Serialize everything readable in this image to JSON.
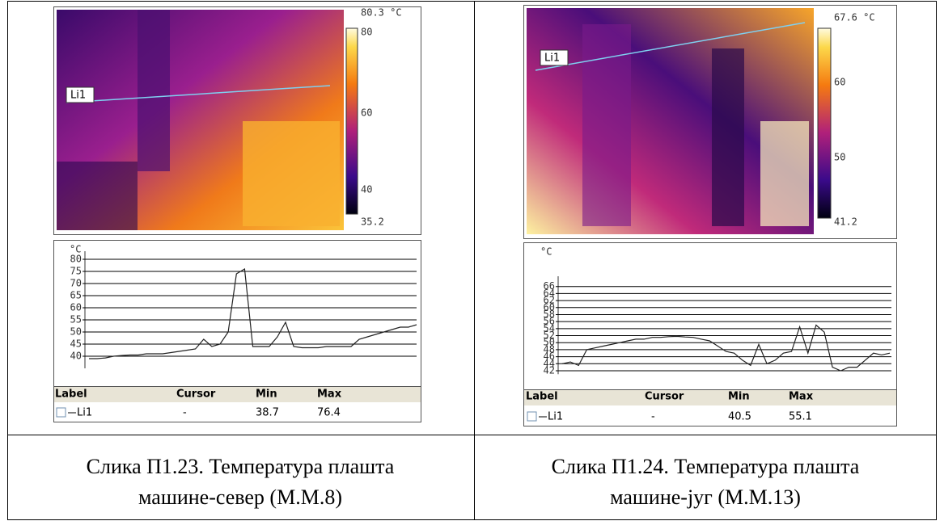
{
  "panels": [
    {
      "colorbar_labels": [
        "80.3 °C",
        "80",
        "60",
        "40",
        "35.2"
      ],
      "line_label": "Li1",
      "chart": {
        "type": "line",
        "unit": "°C",
        "ylim": [
          35,
          82
        ],
        "yticks": [
          40,
          45,
          50,
          55,
          60,
          65,
          70,
          75,
          80
        ],
        "values": [
          39,
          39,
          39.3,
          40,
          40.3,
          40.5,
          40.5,
          41,
          41,
          41,
          41.5,
          42,
          42.5,
          43,
          47,
          44,
          45,
          50,
          74,
          76,
          44,
          44,
          44,
          48,
          54,
          44,
          43.5,
          43.5,
          43.5,
          44,
          44,
          44,
          44,
          47,
          48,
          49,
          50,
          51,
          52,
          52,
          53
        ]
      },
      "table": {
        "columns": [
          "Label",
          "Cursor",
          "Min",
          "Max"
        ],
        "rows": [
          [
            "Li1",
            "-",
            "38.7",
            "76.4"
          ]
        ]
      },
      "caption": [
        "Слика П1.23. Температура плашта",
        "машине-север (М.М.8)"
      ]
    },
    {
      "colorbar_labels": [
        "67.6 °C",
        "60",
        "50",
        "41.2"
      ],
      "line_label": "Li1",
      "chart": {
        "type": "line",
        "unit": "°C",
        "ylim": [
          41,
          68
        ],
        "yticks": [
          42,
          44,
          46,
          48,
          50,
          52,
          54,
          56,
          58,
          60,
          62,
          64,
          66
        ],
        "values": [
          44,
          44.5,
          43.5,
          48,
          48.5,
          49,
          49.5,
          50,
          50.5,
          51,
          51,
          51.5,
          51.5,
          51.7,
          51.8,
          51.6,
          51.5,
          51,
          50.5,
          49,
          47.5,
          47,
          45,
          43.5,
          49.5,
          44,
          45,
          47,
          47.5,
          54.5,
          47,
          55,
          53,
          43,
          42,
          43,
          43,
          45,
          47,
          46.5,
          47
        ]
      },
      "table": {
        "columns": [
          "Label",
          "Cursor",
          "Min",
          "Max"
        ],
        "rows": [
          [
            "Li1",
            "-",
            "40.5",
            "55.1"
          ]
        ]
      },
      "caption": [
        "Слика П1.24. Температура плашта",
        "машине-југ (М.М.13)"
      ]
    }
  ]
}
